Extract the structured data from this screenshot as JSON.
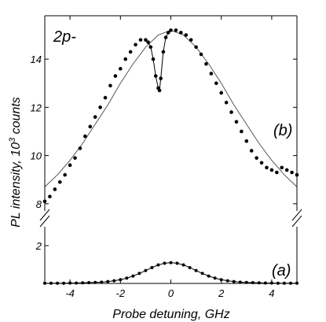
{
  "chart_data": [
    {
      "type": "scatter",
      "panel": "upper",
      "title": "2p-",
      "panel_label": "(b)",
      "xlim": [
        -5,
        5
      ],
      "ylim": [
        7.7,
        15.8
      ],
      "yticks": [
        8,
        10,
        12,
        14
      ],
      "series": [
        {
          "kind": "data",
          "x": [
            -5.0,
            -4.8,
            -4.6,
            -4.4,
            -4.2,
            -4.0,
            -3.8,
            -3.6,
            -3.4,
            -3.2,
            -3.0,
            -2.8,
            -2.6,
            -2.4,
            -2.2,
            -2.0,
            -1.8,
            -1.6,
            -1.4,
            -1.2,
            -1.0,
            -0.9,
            -0.8,
            -0.7,
            -0.6,
            -0.5,
            -0.45,
            -0.4,
            -0.3,
            -0.2,
            -0.1,
            0.0,
            0.2,
            0.4,
            0.6,
            0.8,
            1.0,
            1.2,
            1.4,
            1.6,
            1.8,
            2.0,
            2.2,
            2.4,
            2.6,
            2.8,
            3.0,
            3.2,
            3.4,
            3.6,
            3.8,
            4.0,
            4.2,
            4.4,
            4.6,
            4.8,
            5.0
          ],
          "y": [
            8.1,
            8.3,
            8.6,
            8.9,
            9.2,
            9.6,
            9.9,
            10.3,
            10.8,
            11.2,
            11.6,
            12.0,
            12.4,
            12.9,
            13.3,
            13.6,
            14.0,
            14.3,
            14.6,
            14.8,
            14.8,
            14.7,
            14.5,
            14.0,
            13.3,
            12.8,
            12.7,
            13.2,
            14.3,
            14.9,
            15.1,
            15.2,
            15.2,
            15.1,
            15.0,
            14.8,
            14.5,
            14.2,
            13.8,
            13.4,
            13.0,
            12.6,
            12.2,
            11.8,
            11.4,
            11.0,
            10.6,
            10.2,
            9.9,
            9.7,
            9.5,
            9.4,
            9.3,
            9.5,
            9.4,
            9.3,
            9.2
          ]
        },
        {
          "kind": "fit",
          "x": [
            -5.0,
            -4.5,
            -4.0,
            -3.5,
            -3.0,
            -2.5,
            -2.0,
            -1.5,
            -1.0,
            -0.5,
            0.0,
            0.5,
            1.0,
            1.5,
            2.0,
            2.5,
            3.0,
            3.5,
            4.0,
            4.5,
            5.0
          ],
          "y": [
            8.7,
            9.2,
            9.8,
            10.5,
            11.3,
            12.1,
            13.0,
            13.8,
            14.5,
            15.0,
            15.2,
            15.0,
            14.5,
            13.8,
            13.0,
            12.1,
            11.3,
            10.5,
            9.8,
            9.2,
            8.7
          ]
        }
      ]
    },
    {
      "type": "line",
      "panel": "lower",
      "panel_label": "(a)",
      "xlim": [
        -5,
        5
      ],
      "ylim": [
        0,
        3
      ],
      "yticks": [
        2
      ],
      "xticks": [
        -4,
        -2,
        0,
        2,
        4
      ],
      "series": [
        {
          "kind": "data",
          "x": [
            -5.0,
            -4.75,
            -4.5,
            -4.25,
            -4.0,
            -3.75,
            -3.5,
            -3.25,
            -3.0,
            -2.75,
            -2.5,
            -2.25,
            -2.0,
            -1.75,
            -1.5,
            -1.25,
            -1.0,
            -0.75,
            -0.5,
            -0.25,
            0.0,
            0.25,
            0.5,
            0.75,
            1.0,
            1.25,
            1.5,
            1.75,
            2.0,
            2.25,
            2.5,
            2.75,
            3.0,
            3.25,
            3.5,
            3.75,
            4.0,
            4.25,
            4.5,
            4.75,
            5.0
          ],
          "y": [
            0.01,
            0.01,
            0.01,
            0.01,
            0.02,
            0.02,
            0.03,
            0.04,
            0.05,
            0.07,
            0.1,
            0.14,
            0.2,
            0.28,
            0.39,
            0.53,
            0.68,
            0.84,
            0.98,
            1.07,
            1.1,
            1.07,
            0.98,
            0.84,
            0.68,
            0.53,
            0.39,
            0.28,
            0.2,
            0.14,
            0.1,
            0.07,
            0.05,
            0.04,
            0.03,
            0.02,
            0.02,
            0.01,
            0.01,
            0.01,
            0.01
          ]
        }
      ]
    }
  ],
  "axes": {
    "xlabel": "Probe detuning, GHz",
    "ylabel_prefix": "PL intensity, 10",
    "ylabel_exp": "3",
    "ylabel_suffix": " counts"
  }
}
